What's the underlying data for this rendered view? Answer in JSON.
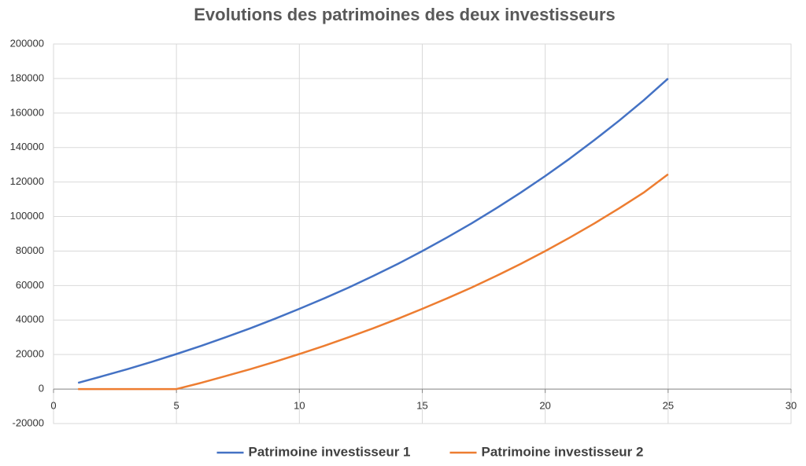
{
  "chart_data": {
    "type": "line",
    "title": "Evolutions des patrimoines des deux investisseurs",
    "x": [
      1,
      2,
      3,
      4,
      5,
      6,
      7,
      8,
      9,
      10,
      11,
      12,
      13,
      14,
      15,
      16,
      17,
      18,
      19,
      20,
      21,
      22,
      23,
      24,
      25
    ],
    "series": [
      {
        "name": "Patrimoine investisseur 1",
        "color": "#4472c4",
        "values": [
          3600,
          7500,
          11500,
          15800,
          20300,
          25000,
          30000,
          35200,
          40700,
          46500,
          52500,
          58800,
          65500,
          72500,
          80000,
          87800,
          96000,
          104700,
          113800,
          123500,
          133600,
          144300,
          155500,
          167300,
          180000
        ]
      },
      {
        "name": "Patrimoine investisseur 2",
        "color": "#ed7d31",
        "values": [
          0,
          0,
          0,
          0,
          0,
          3600,
          7500,
          11500,
          15800,
          20300,
          25000,
          30000,
          35200,
          40700,
          46500,
          52500,
          58800,
          65500,
          72500,
          80000,
          87800,
          96000,
          104700,
          113800,
          124500
        ]
      }
    ],
    "xlim": [
      0,
      30
    ],
    "xticks": [
      0,
      5,
      10,
      15,
      20,
      25,
      30
    ],
    "ylim": [
      -20000,
      200000
    ],
    "yticks": [
      -20000,
      0,
      20000,
      40000,
      60000,
      80000,
      100000,
      120000,
      140000,
      160000,
      180000,
      200000
    ],
    "grid": true,
    "legend": "bottom"
  }
}
